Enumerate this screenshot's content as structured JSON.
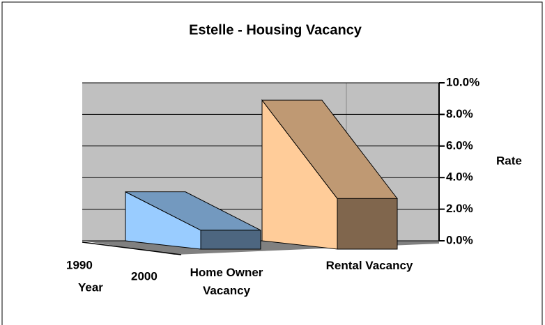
{
  "chart_data": {
    "type": "bar3d",
    "title": "Estelle - Housing Vacancy",
    "categories": [
      "Home Owner Vacancy",
      "Rental Vacancy"
    ],
    "colors": [
      "#99ccff",
      "#ffcc99"
    ],
    "series": [
      {
        "name": "1990",
        "values": [
          3.1,
          8.9
        ]
      },
      {
        "name": "2000",
        "values": [
          1.2,
          3.2
        ]
      }
    ],
    "depth_axis_label": "Year",
    "y_axis_label": "Rate",
    "ylim": [
      0,
      10
    ],
    "yticks": [
      {
        "value": 0,
        "label": "0.0%"
      },
      {
        "value": 2,
        "label": "2.0%"
      },
      {
        "value": 4,
        "label": "4.0%"
      },
      {
        "value": 6,
        "label": "6.0%"
      },
      {
        "value": 8,
        "label": "8.0%"
      },
      {
        "value": 10,
        "label": "10.0%"
      }
    ],
    "grid": true
  }
}
